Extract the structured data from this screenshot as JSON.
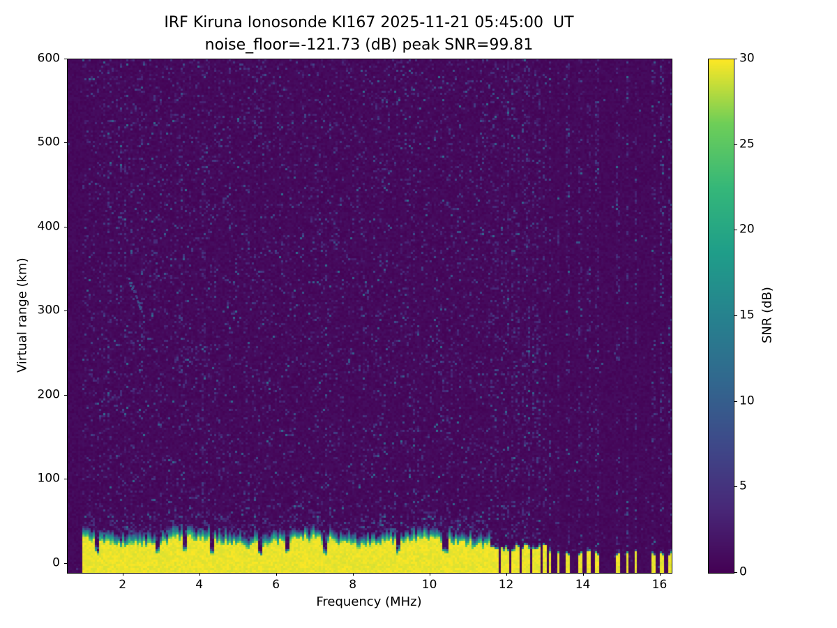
{
  "figure": {
    "title_line1": "IRF Kiruna Ionosonde KI167 2025-11-21 05:45:00  UT",
    "title_line2": "noise_floor=-121.73 (dB) peak SNR=99.81"
  },
  "axes": {
    "xlabel": "Frequency (MHz)",
    "ylabel": "Virtual range (km)",
    "xticks": [
      2,
      4,
      6,
      8,
      10,
      12,
      14,
      16
    ],
    "yticks": [
      0,
      100,
      200,
      300,
      400,
      500,
      600
    ],
    "colorbar_label": "SNR (dB)",
    "colorbar_ticks": [
      0,
      5,
      10,
      15,
      20,
      25,
      30
    ]
  },
  "chart_data": {
    "type": "heatmap",
    "title": "IRF Kiruna Ionosonde KI167 2025-11-21 05:45:00  UT",
    "subtitle": "noise_floor=-121.73 (dB) peak SNR=99.81",
    "station": "IRF Kiruna Ionosonde KI167",
    "timestamp_ut": "2025-11-21 05:45:00",
    "noise_floor_db": -121.73,
    "peak_snr_db": 99.81,
    "xlabel": "Frequency (MHz)",
    "ylabel": "Virtual range (km)",
    "xlim": [
      0.55,
      16.3
    ],
    "ylim": [
      -11,
      600
    ],
    "grid": false,
    "colormap": "viridis",
    "colormap_stops": [
      "#440154",
      "#482878",
      "#3e4989",
      "#31688e",
      "#26828e",
      "#1f9e89",
      "#35b779",
      "#6ece58",
      "#fde725"
    ],
    "colorbar_label": "SNR (dB)",
    "colorbar_range": [
      0,
      30
    ],
    "features": {
      "description": "Dark viridis background of receiver noise speckle over full range; saturated yellow ground-clutter band (SNR ~30 dB) from bottom of plot up to ~20-35 km virtual range with a green/teal fringe above it; continuous frequency sweep up to ~11.55 MHz, then isolated sounded frequency stripes with dark gaps; faint oblique echo trace near 2.1-2.5 MHz at ~305-340 km.",
      "sweep_start_mhz": 0.95,
      "continuous_sweep_end_mhz": 11.55,
      "stripe_halfwidth_mhz": 0.048,
      "stripe_frequencies_mhz": [
        11.62,
        11.755,
        11.89,
        12.025,
        12.16,
        12.295,
        12.43,
        12.565,
        12.7,
        12.835,
        12.97,
        13.12,
        13.35,
        13.57,
        13.92,
        14.14,
        14.36,
        14.92,
        15.14,
        15.36,
        15.82,
        16.04,
        16.26
      ],
      "clutter_notches_mhz": [
        1.32,
        2.88,
        3.62,
        4.3,
        5.55,
        6.3,
        7.28,
        9.15,
        10.4
      ],
      "clutter_band_top_km": 30,
      "clutter_fringe_km": 14,
      "echo_trace": {
        "f_mhz": [
          2.12,
          2.46
        ],
        "range_km": [
          340,
          304
        ],
        "snr_db": 7
      }
    }
  }
}
